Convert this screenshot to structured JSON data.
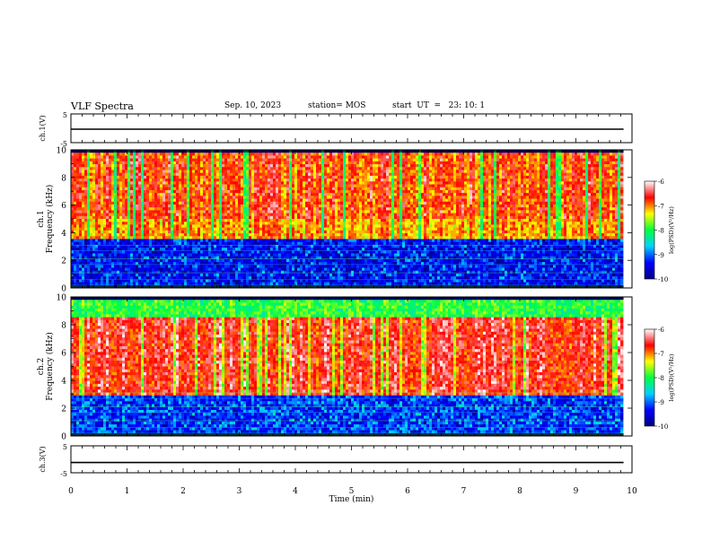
{
  "header": {
    "title": "VLF Spectra",
    "date": "Sep. 10, 2023",
    "station": "station= MOS",
    "start_ut": "start  UT  =   23: 10: 1"
  },
  "chart_data": [
    {
      "type": "line",
      "title": "",
      "ylabel": "ch.1(V)",
      "xlim": [
        0,
        10
      ],
      "ylim": [
        -5,
        5
      ],
      "yticks": [
        "5",
        "-5"
      ],
      "series": [
        {
          "x": [
            0,
            9.85
          ],
          "values": [
            -0.3,
            -0.3
          ]
        }
      ]
    },
    {
      "type": "heatmap",
      "ylabel_top": "ch.1",
      "ylabel": "Frequency (kHz)",
      "xlim": [
        0,
        10
      ],
      "ylim": [
        0,
        10
      ],
      "yticks": [
        "0",
        "2",
        "4",
        "6",
        "8",
        "10"
      ],
      "colorbar": {
        "label": "log(PSD)(V²/Hz)",
        "range": [
          -10,
          -6
        ],
        "ticks": [
          "-6",
          "-7",
          "-8",
          "-9",
          "-10"
        ],
        "colors": [
          "#000080",
          "#0000ff",
          "#00d0ff",
          "#00ff40",
          "#ffff00",
          "#ff0000",
          "#ffffff"
        ]
      },
      "data_extent_min": 9.85
    },
    {
      "type": "heatmap",
      "ylabel_top": "ch.2",
      "ylabel": "Frequency (kHz)",
      "xlim": [
        0,
        10
      ],
      "ylim": [
        0,
        10
      ],
      "yticks": [
        "0",
        "2",
        "4",
        "6",
        "8",
        "10"
      ],
      "colorbar": {
        "label": "log(PSD)(V²/Hz)",
        "range": [
          -10,
          -6
        ],
        "ticks": [
          "-6",
          "-7",
          "-8",
          "-9",
          "-10"
        ],
        "colors": [
          "#000080",
          "#0000ff",
          "#00d0ff",
          "#00ff40",
          "#ffff00",
          "#ff0000",
          "#ffffff"
        ]
      },
      "data_extent_min": 9.85
    },
    {
      "type": "line",
      "title": "",
      "ylabel": "ch.3(V)",
      "xlabel": "Time (min)",
      "xlim": [
        0,
        10
      ],
      "ylim": [
        -5,
        5
      ],
      "yticks": [
        "5",
        "-5"
      ],
      "xticks": [
        "0",
        "1",
        "2",
        "3",
        "4",
        "5",
        "6",
        "7",
        "8",
        "9",
        "10"
      ],
      "series": [
        {
          "x": [
            0,
            9.85
          ],
          "values": [
            -1.2,
            -1.2
          ]
        }
      ]
    }
  ]
}
